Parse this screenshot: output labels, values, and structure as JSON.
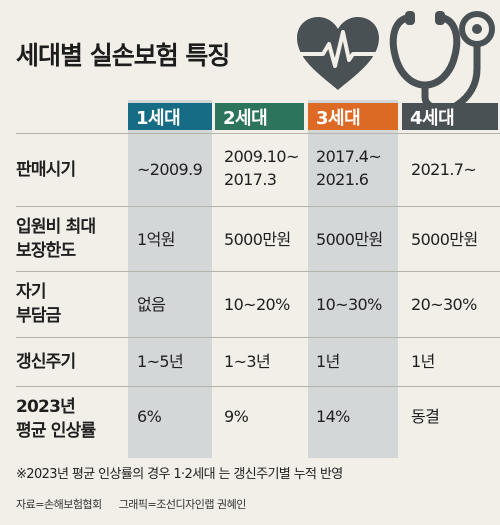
{
  "title": "세대별 실손보험 특징",
  "icons": [
    "heart-pulse-icon",
    "stethoscope-icon"
  ],
  "colors": {
    "gen1": "#156c84",
    "gen2": "#2d745c",
    "gen3": "#dc6a24",
    "gen4": "#4a5154",
    "highlight_column": "#d3d7d8",
    "icon": "#4a5154",
    "background": "#f1efe8"
  },
  "table": {
    "headers": [
      "1세대",
      "2세대",
      "3세대",
      "4세대"
    ],
    "rows": [
      {
        "label": [
          "판매시기"
        ],
        "cells": [
          [
            "~2009.9"
          ],
          [
            "2009.10~",
            "2017.3"
          ],
          [
            "2017.4~",
            "2021.6"
          ],
          [
            "2021.7~"
          ]
        ]
      },
      {
        "label": [
          "입원비 최대",
          "보장한도"
        ],
        "cells": [
          [
            "1억원"
          ],
          [
            "5000만원"
          ],
          [
            "5000만원"
          ],
          [
            "5000만원"
          ]
        ]
      },
      {
        "label": [
          "자기",
          "부담금"
        ],
        "cells": [
          [
            "없음"
          ],
          [
            "10~20%"
          ],
          [
            "10~30%"
          ],
          [
            "20~30%"
          ]
        ]
      },
      {
        "label": [
          "갱신주기"
        ],
        "cells": [
          [
            "1~5년"
          ],
          [
            "1~3년"
          ],
          [
            "1년"
          ],
          [
            "1년"
          ]
        ]
      },
      {
        "label": [
          "2023년",
          "평균 인상률"
        ],
        "cells": [
          [
            "6%"
          ],
          [
            "9%"
          ],
          [
            "14%"
          ],
          [
            "동결"
          ]
        ]
      }
    ]
  },
  "note": "※2023년 평균 인상률의 경우 1·2세대 는 갱신주기별 누적 반영",
  "source": {
    "data": "자료=손해보험협회",
    "graphic": "그래픽=조선디자인랩 권혜인"
  }
}
